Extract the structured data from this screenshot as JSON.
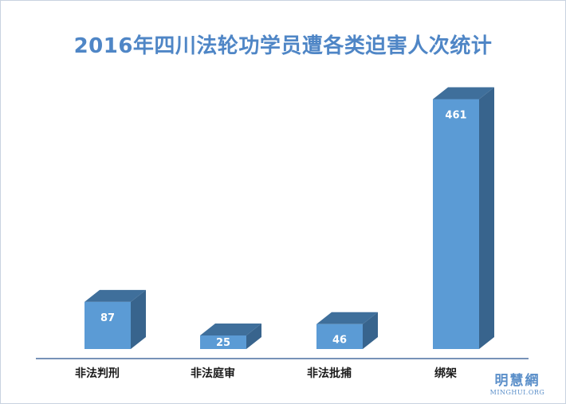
{
  "chart_data": {
    "type": "bar",
    "title": "2016年四川法轮功学员遭各类迫害人次统计",
    "categories": [
      "非法判刑",
      "非法庭审",
      "非法批捕",
      "绑架"
    ],
    "values": [
      87,
      25,
      46,
      461
    ],
    "ylim": [
      0,
      500
    ],
    "grid": false,
    "legend": "none",
    "colors": {
      "front": "#5b9bd5",
      "top": "#3f6f9b",
      "side": "#38648d",
      "axis": "#4a6fa0",
      "title": "#4f86c6"
    }
  },
  "watermark": {
    "cn": "明慧網",
    "en": "MINGHUI.ORG"
  }
}
